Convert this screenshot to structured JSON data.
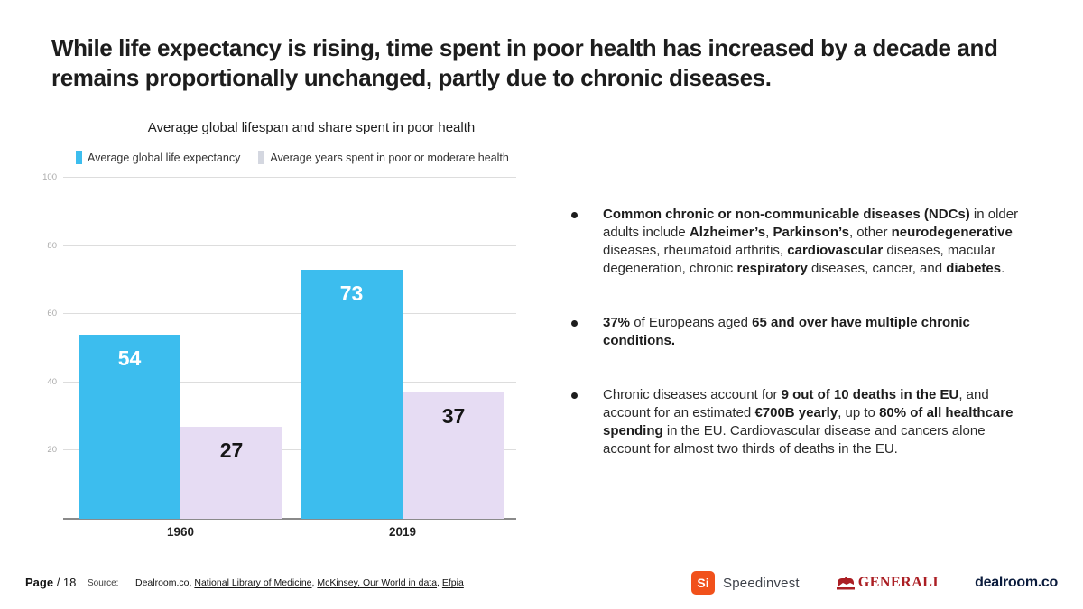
{
  "slide": {
    "title": "While life expectancy is rising, time spent in poor health has increased by a decade and remains proportionally unchanged, partly due to chronic diseases."
  },
  "chart_data": {
    "type": "bar",
    "title": "Average global lifespan and share spent in poor health",
    "categories": [
      "1960",
      "2019"
    ],
    "series": [
      {
        "name": "Average global life expectancy",
        "values": [
          54,
          73
        ],
        "color": "#3cbdee",
        "legend_color": "#3cbdee",
        "label_color": "#ffffff"
      },
      {
        "name": "Average years spent in poor or moderate health",
        "values": [
          27,
          37
        ],
        "color": "#e6dcf3",
        "legend_color": "#d4d7e0",
        "label_color": "#151515"
      }
    ],
    "ylim": [
      0,
      100
    ],
    "yticks": [
      20,
      40,
      60,
      80,
      100
    ],
    "grid": true,
    "legend_position": "top-left"
  },
  "bullets": [
    {
      "segments": [
        {
          "b": true,
          "t": "Common chronic or non-communicable diseases (NDCs)"
        },
        {
          "t": " in older adults include "
        },
        {
          "b": true,
          "t": "Alzheimer’s"
        },
        {
          "t": ", "
        },
        {
          "b": true,
          "t": "Parkinson’s"
        },
        {
          "t": ", other "
        },
        {
          "b": true,
          "t": "neurodegenerative"
        },
        {
          "t": " diseases, rheumatoid arthritis, "
        },
        {
          "b": true,
          "t": "cardiovascular"
        },
        {
          "t": " diseases, macular degeneration, chronic "
        },
        {
          "b": true,
          "t": "respiratory"
        },
        {
          "t": " diseases, cancer, and "
        },
        {
          "b": true,
          "t": "diabetes"
        },
        {
          "t": "."
        }
      ]
    },
    {
      "segments": [
        {
          "b": true,
          "t": "37%"
        },
        {
          "t": " of Europeans aged "
        },
        {
          "b": true,
          "t": "65 and over have multiple chronic conditions."
        }
      ]
    },
    {
      "segments": [
        {
          "t": "Chronic diseases account for "
        },
        {
          "b": true,
          "t": "9 out of 10 deaths in the EU"
        },
        {
          "t": ", and account for an estimated "
        },
        {
          "b": true,
          "t": "€700B yearly"
        },
        {
          "t": ", up to "
        },
        {
          "b": true,
          "t": "80% of all healthcare spending"
        },
        {
          "t": " in the EU. Cardiovascular disease and cancers alone account for almost two thirds of deaths in the EU."
        }
      ]
    }
  ],
  "footer": {
    "page_label": "Page",
    "page_number": "/ 18",
    "source_label": "Source:",
    "sources": [
      {
        "text": "Dealroom.co",
        "link": false
      },
      {
        "text": "National Library of Medicine",
        "link": true
      },
      {
        "text": "McKinsey, Our World in data",
        "link": true
      },
      {
        "text": "Efpia",
        "link": true
      }
    ],
    "logos": {
      "speedinvest_mark": "Si",
      "speedinvest": "Speedinvest",
      "generali": "GENERALI",
      "dealroom": "dealroom.co"
    }
  }
}
